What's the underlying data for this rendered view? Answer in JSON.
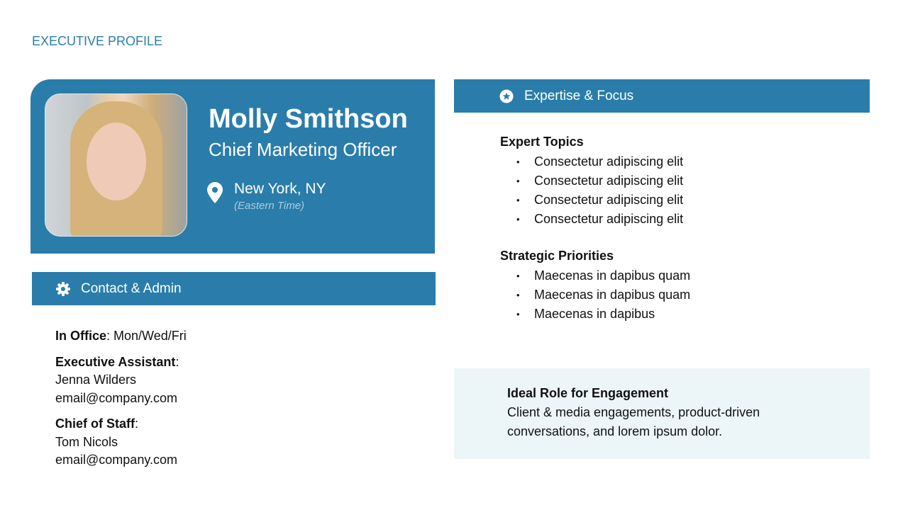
{
  "kicker": "EXECUTIVE PROFILE",
  "colors": {
    "brand": "#2a7daa",
    "kicker": "#2a7eaa",
    "panel": "#ecf5f7"
  },
  "profile": {
    "name": "Molly Smithson",
    "title": "Chief Marketing Officer",
    "location": "New York, NY",
    "timezone": "(Eastern Time)",
    "location_icon": "map-pin-icon"
  },
  "contact": {
    "header": "Contact & Admin",
    "icon": "gear-icon",
    "in_office_label": "In Office",
    "in_office_value": ": Mon/Wed/Fri",
    "ea_label": "Executive Assistant",
    "ea_name": "Jenna Wilders",
    "ea_email": "email@company.com",
    "cos_label": "Chief of Staff",
    "cos_name": "Tom Nicols",
    "cos_email": "email@company.com"
  },
  "expertise": {
    "header": "Expertise & Focus",
    "icon": "star-circle-icon",
    "topics_title": "Expert Topics",
    "topics": [
      "Consectetur adipiscing elit",
      "Consectetur adipiscing elit",
      "Consectetur adipiscing elit",
      "Consectetur adipiscing elit"
    ],
    "priorities_title": "Strategic Priorities",
    "priorities": [
      "Maecenas in dapibus quam",
      "Maecenas in dapibus quam",
      "Maecenas in dapibus"
    ]
  },
  "ideal": {
    "title": "Ideal Role for Engagement",
    "text": "Client & media engagements, product-driven conversations, and lorem ipsum dolor."
  }
}
